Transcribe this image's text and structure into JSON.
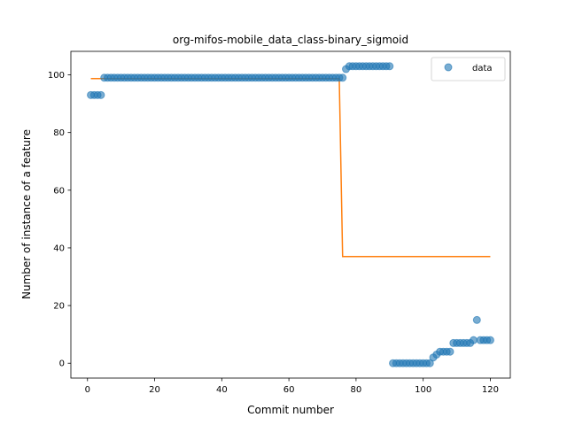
{
  "chart_data": {
    "type": "scatter",
    "title": "org-mifos-mobile_data_class-binary_sigmoid",
    "xlabel": "Commit number",
    "ylabel": "Number of instance of a feature",
    "xlim": [
      -4.95,
      125.95
    ],
    "ylim": [
      -5.15,
      108.15
    ],
    "xticks": [
      0,
      20,
      40,
      60,
      80,
      100,
      120
    ],
    "yticks": [
      0,
      20,
      40,
      60,
      80,
      100
    ],
    "legend": {
      "position": "top-right",
      "entries": [
        "data"
      ]
    },
    "grid": false,
    "colors": {
      "data": "#1f77b4",
      "fit": "#ff7f0e"
    },
    "series": [
      {
        "name": "data",
        "kind": "scatter",
        "points": [
          [
            1,
            93
          ],
          [
            2,
            93
          ],
          [
            3,
            93
          ],
          [
            4,
            93
          ],
          [
            5,
            99
          ],
          [
            6,
            99
          ],
          [
            7,
            99
          ],
          [
            8,
            99
          ],
          [
            9,
            99
          ],
          [
            10,
            99
          ],
          [
            11,
            99
          ],
          [
            12,
            99
          ],
          [
            13,
            99
          ],
          [
            14,
            99
          ],
          [
            15,
            99
          ],
          [
            16,
            99
          ],
          [
            17,
            99
          ],
          [
            18,
            99
          ],
          [
            19,
            99
          ],
          [
            20,
            99
          ],
          [
            21,
            99
          ],
          [
            22,
            99
          ],
          [
            23,
            99
          ],
          [
            24,
            99
          ],
          [
            25,
            99
          ],
          [
            26,
            99
          ],
          [
            27,
            99
          ],
          [
            28,
            99
          ],
          [
            29,
            99
          ],
          [
            30,
            99
          ],
          [
            31,
            99
          ],
          [
            32,
            99
          ],
          [
            33,
            99
          ],
          [
            34,
            99
          ],
          [
            35,
            99
          ],
          [
            36,
            99
          ],
          [
            37,
            99
          ],
          [
            38,
            99
          ],
          [
            39,
            99
          ],
          [
            40,
            99
          ],
          [
            41,
            99
          ],
          [
            42,
            99
          ],
          [
            43,
            99
          ],
          [
            44,
            99
          ],
          [
            45,
            99
          ],
          [
            46,
            99
          ],
          [
            47,
            99
          ],
          [
            48,
            99
          ],
          [
            49,
            99
          ],
          [
            50,
            99
          ],
          [
            51,
            99
          ],
          [
            52,
            99
          ],
          [
            53,
            99
          ],
          [
            54,
            99
          ],
          [
            55,
            99
          ],
          [
            56,
            99
          ],
          [
            57,
            99
          ],
          [
            58,
            99
          ],
          [
            59,
            99
          ],
          [
            60,
            99
          ],
          [
            61,
            99
          ],
          [
            62,
            99
          ],
          [
            63,
            99
          ],
          [
            64,
            99
          ],
          [
            65,
            99
          ],
          [
            66,
            99
          ],
          [
            67,
            99
          ],
          [
            68,
            99
          ],
          [
            69,
            99
          ],
          [
            70,
            99
          ],
          [
            71,
            99
          ],
          [
            72,
            99
          ],
          [
            73,
            99
          ],
          [
            74,
            99
          ],
          [
            75,
            99
          ],
          [
            76,
            99
          ],
          [
            77,
            102
          ],
          [
            78,
            103
          ],
          [
            79,
            103
          ],
          [
            80,
            103
          ],
          [
            81,
            103
          ],
          [
            82,
            103
          ],
          [
            83,
            103
          ],
          [
            84,
            103
          ],
          [
            85,
            103
          ],
          [
            86,
            103
          ],
          [
            87,
            103
          ],
          [
            88,
            103
          ],
          [
            89,
            103
          ],
          [
            90,
            103
          ],
          [
            91,
            0
          ],
          [
            92,
            0
          ],
          [
            93,
            0
          ],
          [
            94,
            0
          ],
          [
            95,
            0
          ],
          [
            96,
            0
          ],
          [
            97,
            0
          ],
          [
            98,
            0
          ],
          [
            99,
            0
          ],
          [
            100,
            0
          ],
          [
            101,
            0
          ],
          [
            102,
            0
          ],
          [
            103,
            2
          ],
          [
            104,
            3
          ],
          [
            105,
            4
          ],
          [
            106,
            4
          ],
          [
            107,
            4
          ],
          [
            108,
            4
          ],
          [
            109,
            7
          ],
          [
            110,
            7
          ],
          [
            111,
            7
          ],
          [
            112,
            7
          ],
          [
            113,
            7
          ],
          [
            114,
            7
          ],
          [
            115,
            8
          ],
          [
            116,
            15
          ],
          [
            117,
            8
          ],
          [
            118,
            8
          ],
          [
            119,
            8
          ],
          [
            120,
            8
          ]
        ]
      },
      {
        "kind": "line",
        "points": [
          [
            1,
            98.7
          ],
          [
            75,
            98.7
          ],
          [
            76,
            37
          ],
          [
            120,
            37
          ]
        ]
      }
    ]
  }
}
